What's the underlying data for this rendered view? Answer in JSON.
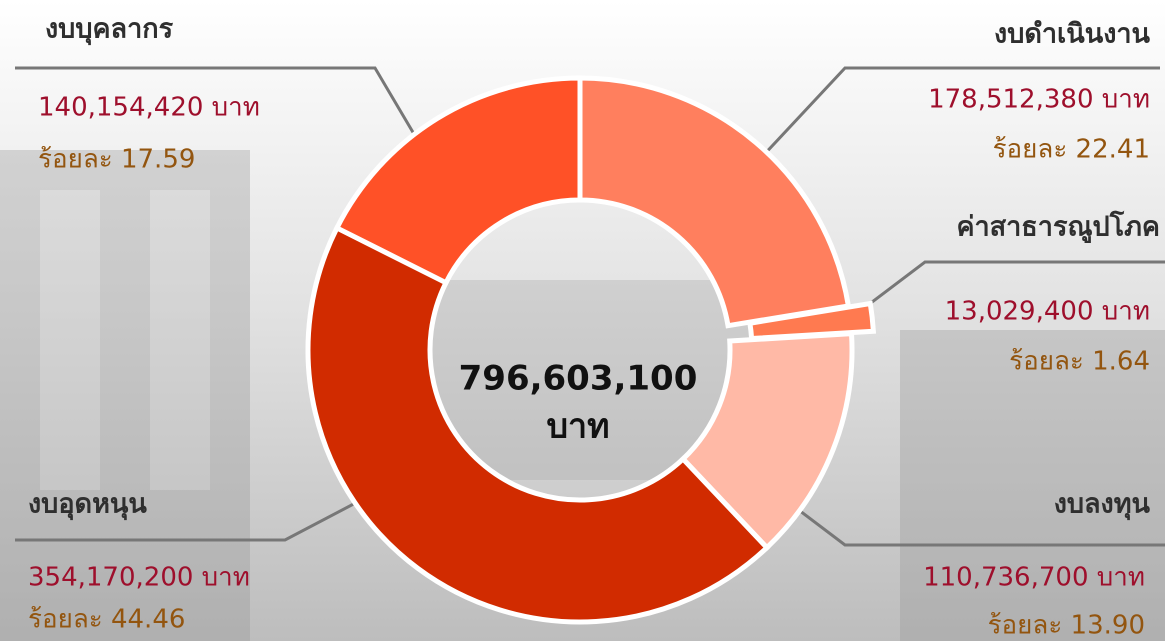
{
  "chart_data": {
    "type": "pie",
    "categories": [
      "งบดำเนินงาน",
      "ค่าสาธารณูปโภค",
      "งบลงทุน",
      "งบอุดหนุน",
      "งบบุคลากร"
    ],
    "values": [
      178512380,
      13029400,
      110736700,
      354170200,
      140154420
    ],
    "value_labels": [
      "178,512,380 บาท",
      "13,029,400 บาท",
      "110,736,700 บาท",
      "354,170,200 บาท",
      "140,154,420 บาท"
    ],
    "percent_labels": [
      "ร้อยละ 22.41",
      "ร้อยละ 1.64",
      "ร้อยละ 13.90",
      "ร้อยละ 44.46",
      "ร้อยละ 17.59"
    ],
    "colors": [
      "#ff7f5e",
      "#ff7a50",
      "#ffb9a6",
      "#d12b00",
      "#ff5127"
    ],
    "total": 796603100,
    "total_label": "796,603,100",
    "total_unit": "บาท",
    "donut": true,
    "exploded": [
      1
    ]
  }
}
